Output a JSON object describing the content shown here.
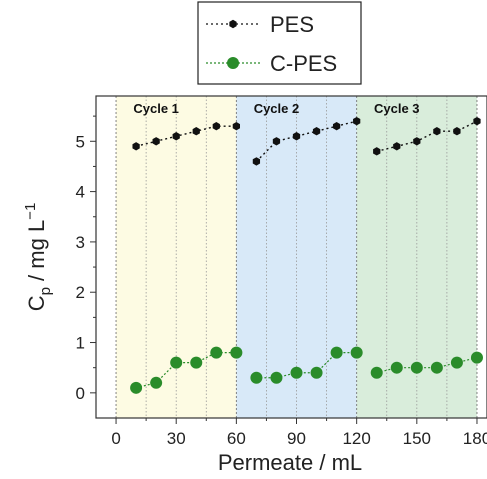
{
  "chart_data": {
    "type": "line",
    "xlabel": "Permeate / mL",
    "ylabel_main": "C",
    "ylabel_sub": "p",
    "ylabel_unit": " / mg L",
    "ylabel_exp": "−1",
    "xlim": [
      -10,
      185
    ],
    "ylim": [
      -0.5,
      5.9
    ],
    "xticks": [
      0,
      30,
      60,
      90,
      120,
      150,
      180
    ],
    "yticks": [
      0,
      1,
      2,
      3,
      4,
      5
    ],
    "x_dotted_lines": [
      15,
      30,
      45,
      75,
      90,
      105,
      135,
      150,
      165
    ],
    "regions": [
      {
        "label": "Cycle 1",
        "x0": 0,
        "x1": 60,
        "color": "#fdfbe3"
      },
      {
        "label": "Cycle 2",
        "x0": 60,
        "x1": 120,
        "color": "#d8e9f8"
      },
      {
        "label": "Cycle 3",
        "x0": 120,
        "x1": 180,
        "color": "#d9eddb"
      }
    ],
    "cycle_boundaries": [
      0,
      60,
      120,
      180
    ],
    "series": [
      {
        "name": "PES",
        "color": "#111111",
        "segments": [
          {
            "x": [
              10,
              20,
              30,
              40,
              50,
              60
            ],
            "y": [
              4.9,
              5.0,
              5.1,
              5.2,
              5.3,
              5.3
            ]
          },
          {
            "x": [
              70,
              80,
              90,
              100,
              110,
              120
            ],
            "y": [
              4.6,
              5.0,
              5.1,
              5.2,
              5.3,
              5.4
            ]
          },
          {
            "x": [
              130,
              140,
              150,
              160,
              170,
              180
            ],
            "y": [
              4.8,
              4.9,
              5.0,
              5.2,
              5.2,
              5.4
            ]
          }
        ]
      },
      {
        "name": "C-PES",
        "color": "#2a8c2a",
        "segments": [
          {
            "x": [
              10,
              20,
              30,
              40,
              50,
              60
            ],
            "y": [
              0.1,
              0.2,
              0.6,
              0.6,
              0.8,
              0.8
            ]
          },
          {
            "x": [
              70,
              80,
              90,
              100,
              110,
              120
            ],
            "y": [
              0.3,
              0.3,
              0.4,
              0.4,
              0.8,
              0.8
            ]
          },
          {
            "x": [
              130,
              140,
              150,
              160,
              170,
              180
            ],
            "y": [
              0.4,
              0.5,
              0.5,
              0.5,
              0.6,
              0.7
            ]
          }
        ]
      }
    ]
  }
}
